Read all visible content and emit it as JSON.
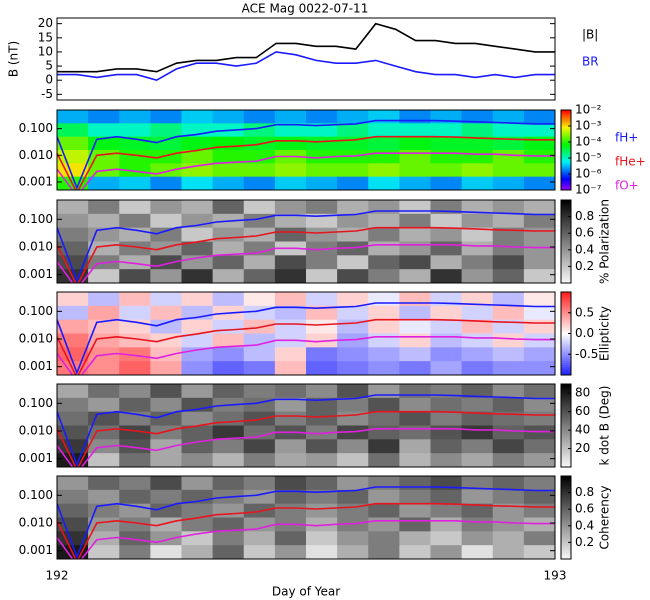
{
  "chart_data": [
    {
      "type": "line",
      "title": "ACE Mag 0022-07-11",
      "ylabel": "B (nT)",
      "xlim": [
        192,
        193
      ],
      "ylim": [
        -7,
        22
      ],
      "yticks": [
        -5,
        0,
        5,
        10,
        15,
        20
      ],
      "x": [
        192.0,
        192.04,
        192.08,
        192.12,
        192.16,
        192.2,
        192.24,
        192.28,
        192.32,
        192.36,
        192.4,
        192.44,
        192.48,
        192.52,
        192.56,
        192.6,
        192.64,
        192.68,
        192.72,
        192.76,
        192.8,
        192.84,
        192.88,
        192.92,
        192.96,
        193.0
      ],
      "series": [
        {
          "name": "|B|",
          "color": "#000000",
          "values": [
            3,
            3,
            3,
            4,
            4,
            3,
            6,
            7,
            7,
            8,
            8,
            13,
            13,
            12,
            12,
            11,
            20,
            18,
            14,
            14,
            13,
            13,
            12,
            11,
            10,
            10
          ]
        },
        {
          "name": "BR",
          "color": "#1a1aff",
          "values": [
            2,
            2,
            1,
            2,
            2,
            0,
            4,
            6,
            6,
            5,
            6,
            10,
            9,
            7,
            6,
            6,
            7,
            5,
            3,
            2,
            2,
            1,
            2,
            1,
            2,
            2
          ]
        }
      ]
    },
    {
      "type": "heatmap",
      "log_y": true,
      "xlim": [
        192,
        193
      ],
      "ylim": [
        0.0005,
        0.5
      ],
      "yticks": [
        {
          "value": 0.001,
          "label": "0.001"
        },
        {
          "value": 0.01,
          "label": "0.010"
        },
        {
          "value": 0.1,
          "label": "0.100"
        }
      ],
      "colormap": "rainbow",
      "zlog": true,
      "zlim": [
        1e-07,
        0.01
      ],
      "zticks": [
        {
          "value": 0.01,
          "label": "10⁻²"
        },
        {
          "value": 0.001,
          "label": "10⁻³"
        },
        {
          "value": 0.0001,
          "label": "10⁻⁴"
        },
        {
          "value": 1e-05,
          "label": "10⁻⁵"
        },
        {
          "value": 1e-06,
          "label": "10⁻⁶"
        },
        {
          "value": 1e-07,
          "label": "10⁻⁷"
        }
      ],
      "z": [
        [
          3e-06,
          2e-06,
          3e-06,
          2e-06,
          4e-06,
          3e-06,
          2e-06,
          3e-06,
          2e-06,
          3e-06,
          4e-06,
          2e-06,
          3e-06,
          2e-06,
          3e-06,
          2e-06
        ],
        [
          3e-05,
          1e-05,
          1e-05,
          2e-05,
          1e-05,
          1e-05,
          2e-05,
          1e-05,
          1e-05,
          2e-05,
          1e-05,
          1e-05,
          1e-05,
          2e-05,
          1e-05,
          1e-05
        ],
        [
          0.0002,
          6e-05,
          5e-05,
          4e-05,
          6e-05,
          7e-05,
          5e-05,
          6e-05,
          5e-05,
          5e-05,
          4e-05,
          6e-05,
          5e-05,
          5e-05,
          4e-05,
          6e-05
        ],
        [
          0.0005,
          0.0002,
          0.0001,
          0.0001,
          0.0002,
          0.0001,
          0.0001,
          0.0002,
          0.0001,
          0.0001,
          0.0001,
          0.0002,
          0.0001,
          0.0001,
          0.0002,
          0.0001
        ],
        [
          0.001,
          0.0002,
          0.0001,
          0.0002,
          0.0003,
          0.0002,
          0.0002,
          0.0003,
          0.0002,
          0.0002,
          0.0003,
          0.0002,
          0.0002,
          0.0003,
          0.0002,
          0.0002
        ],
        [
          0.0001,
          3e-06,
          4e-06,
          2e-06,
          5e-06,
          3e-06,
          2e-06,
          4e-06,
          3e-06,
          2e-06,
          5e-06,
          3e-06,
          2e-06,
          4e-06,
          3e-06,
          2e-06
        ]
      ],
      "x": [
        192.0,
        192.04,
        192.08,
        192.12,
        192.16,
        192.2,
        192.24,
        192.28,
        192.32,
        192.36,
        192.4,
        192.44,
        192.48,
        192.52,
        192.56,
        192.6,
        192.64,
        192.68,
        192.72,
        192.76,
        192.8,
        192.84,
        192.88,
        192.92,
        192.96,
        193.0
      ],
      "series": [
        {
          "name": "fH+",
          "color": "#1a1aff",
          "values": [
            0.05,
            0.0006,
            0.04,
            0.05,
            0.04,
            0.03,
            0.05,
            0.06,
            0.08,
            0.09,
            0.1,
            0.14,
            0.14,
            0.13,
            0.14,
            0.15,
            0.2,
            0.2,
            0.2,
            0.2,
            0.19,
            0.18,
            0.17,
            0.16,
            0.15,
            0.15
          ]
        },
        {
          "name": "fHe+",
          "color": "#e8141e",
          "values": [
            0.012,
            0.0004,
            0.01,
            0.012,
            0.01,
            0.008,
            0.012,
            0.015,
            0.02,
            0.022,
            0.025,
            0.035,
            0.035,
            0.032,
            0.035,
            0.038,
            0.05,
            0.05,
            0.05,
            0.05,
            0.048,
            0.045,
            0.042,
            0.04,
            0.038,
            0.038
          ]
        },
        {
          "name": "fO+",
          "color": "#e020e0",
          "values": [
            0.003,
            0.0003,
            0.0025,
            0.003,
            0.0025,
            0.002,
            0.003,
            0.004,
            0.005,
            0.0055,
            0.006,
            0.009,
            0.009,
            0.008,
            0.009,
            0.0095,
            0.012,
            0.012,
            0.012,
            0.012,
            0.012,
            0.011,
            0.011,
            0.01,
            0.0095,
            0.0095
          ]
        }
      ]
    },
    {
      "type": "heatmap",
      "log_y": true,
      "xlim": [
        192,
        193
      ],
      "ylim": [
        0.0005,
        0.5
      ],
      "yticks": [
        {
          "value": 0.001,
          "label": "0.001"
        },
        {
          "value": 0.01,
          "label": "0.010"
        },
        {
          "value": 0.1,
          "label": "0.100"
        }
      ],
      "colormap": "gray",
      "zlim": [
        0,
        1
      ],
      "zticks": [
        0.2,
        0.4,
        0.6,
        0.8
      ],
      "colorbar_label": "% Polarization",
      "z": [
        [
          0.3,
          0.5,
          0.2,
          0.4,
          0.3,
          0.6,
          0.2,
          0.4,
          0.5,
          0.3,
          0.4,
          0.2,
          0.5,
          0.3,
          0.4,
          0.3
        ],
        [
          0.4,
          0.3,
          0.5,
          0.2,
          0.4,
          0.3,
          0.5,
          0.3,
          0.2,
          0.4,
          0.3,
          0.5,
          0.2,
          0.4,
          0.3,
          0.5
        ],
        [
          0.5,
          0.4,
          0.3,
          0.5,
          0.2,
          0.4,
          0.3,
          0.6,
          0.4,
          0.3,
          0.5,
          0.3,
          0.4,
          0.2,
          0.5,
          0.4
        ],
        [
          0.6,
          0.3,
          0.5,
          0.4,
          0.6,
          0.3,
          0.5,
          0.2,
          0.5,
          0.6,
          0.3,
          0.4,
          0.6,
          0.3,
          0.5,
          0.4
        ],
        [
          0.7,
          0.5,
          0.3,
          0.7,
          0.4,
          0.6,
          0.3,
          0.7,
          0.5,
          0.2,
          0.6,
          0.7,
          0.3,
          0.5,
          0.7,
          0.4
        ],
        [
          0.8,
          0.2,
          0.7,
          0.4,
          0.8,
          0.3,
          0.6,
          0.8,
          0.2,
          0.7,
          0.5,
          0.3,
          0.8,
          0.4,
          0.6,
          0.2
        ]
      ]
    },
    {
      "type": "heatmap",
      "log_y": true,
      "xlim": [
        192,
        193
      ],
      "ylim": [
        0.0005,
        0.5
      ],
      "yticks": [
        {
          "value": 0.001,
          "label": "0.001"
        },
        {
          "value": 0.01,
          "label": "0.010"
        },
        {
          "value": 0.1,
          "label": "0.100"
        }
      ],
      "colormap": "bwr",
      "zlim": [
        -1,
        1
      ],
      "zticks": [
        -0.5,
        {
          "value": 0,
          "label": "0.0"
        },
        0.5
      ],
      "colorbar_label": "Ellipticity",
      "z": [
        [
          0.2,
          -0.3,
          0.3,
          -0.2,
          0.2,
          -0.3,
          0.1,
          0.3,
          -0.2,
          0.2,
          -0.1,
          0.3,
          -0.2,
          0.2,
          -0.3,
          0.1
        ],
        [
          -0.3,
          0.4,
          -0.2,
          0.3,
          -0.3,
          0.2,
          -0.2,
          -0.3,
          0.3,
          -0.2,
          0.2,
          -0.3,
          0.2,
          -0.2,
          0.3,
          -0.1
        ],
        [
          0.4,
          0.3,
          0.2,
          -0.3,
          0.2,
          -0.2,
          0.3,
          -0.2,
          0.1,
          -0.3,
          0.2,
          -0.1,
          -0.2,
          0.3,
          -0.2,
          0.2
        ],
        [
          0.6,
          0.4,
          0.3,
          0.2,
          -0.2,
          0.3,
          -0.3,
          -0.2,
          0.2,
          -0.4,
          -0.2,
          0.2,
          -0.3,
          -0.2,
          0.2,
          -0.2
        ],
        [
          0.7,
          0.5,
          0.6,
          0.3,
          -0.4,
          -0.5,
          -0.3,
          0.2,
          -0.6,
          -0.5,
          -0.4,
          -0.3,
          -0.5,
          -0.4,
          -0.3,
          -0.4
        ],
        [
          0.6,
          0.5,
          0.7,
          0.4,
          -0.5,
          -0.7,
          -0.6,
          0.3,
          -0.7,
          -0.6,
          -0.5,
          -0.6,
          -0.4,
          -0.6,
          -0.5,
          -0.5
        ]
      ]
    },
    {
      "type": "heatmap",
      "log_y": true,
      "xlim": [
        192,
        193
      ],
      "ylim": [
        0.0005,
        0.5
      ],
      "yticks": [
        {
          "value": 0.001,
          "label": "0.001"
        },
        {
          "value": 0.01,
          "label": "0.010"
        },
        {
          "value": 0.1,
          "label": "0.100"
        }
      ],
      "colormap": "gray",
      "zlim": [
        0,
        90
      ],
      "zticks": [
        20,
        40,
        60,
        80
      ],
      "colorbar_label": "k dot B (Deg)",
      "z": [
        [
          30,
          50,
          40,
          60,
          35,
          55,
          45,
          50,
          40,
          60,
          35,
          50,
          45,
          55,
          40,
          50
        ],
        [
          45,
          35,
          55,
          40,
          60,
          45,
          50,
          35,
          55,
          45,
          60,
          40,
          50,
          45,
          55,
          40
        ],
        [
          50,
          60,
          45,
          55,
          40,
          50,
          60,
          45,
          55,
          40,
          50,
          60,
          45,
          55,
          50,
          45
        ],
        [
          60,
          50,
          65,
          45,
          55,
          70,
          50,
          60,
          45,
          65,
          55,
          50,
          60,
          70,
          55,
          60
        ],
        [
          70,
          40,
          60,
          30,
          55,
          45,
          65,
          35,
          60,
          40,
          70,
          30,
          55,
          45,
          65,
          50
        ],
        [
          80,
          20,
          50,
          30,
          40,
          25,
          45,
          30,
          35,
          20,
          50,
          25,
          40,
          30,
          45,
          35
        ]
      ]
    },
    {
      "type": "heatmap",
      "log_y": true,
      "xlim": [
        192,
        193
      ],
      "ylim": [
        0.0005,
        0.5
      ],
      "yticks": [
        {
          "value": 0.001,
          "label": "0.001"
        },
        {
          "value": 0.01,
          "label": "0.010"
        },
        {
          "value": 0.1,
          "label": "0.100"
        }
      ],
      "colormap": "gray",
      "zlim": [
        0,
        1
      ],
      "zticks": [
        0.2,
        0.4,
        0.6,
        0.8
      ],
      "colorbar_label": "Coherency",
      "xticks": [
        192,
        193
      ],
      "xlabel": "Day of Year",
      "z": [
        [
          0.4,
          0.6,
          0.5,
          0.7,
          0.4,
          0.6,
          0.5,
          0.7,
          0.6,
          0.4,
          0.5,
          0.6,
          0.7,
          0.5,
          0.6,
          0.5
        ],
        [
          0.5,
          0.4,
          0.6,
          0.5,
          0.6,
          0.5,
          0.4,
          0.6,
          0.5,
          0.6,
          0.4,
          0.5,
          0.6,
          0.4,
          0.5,
          0.6
        ],
        [
          0.6,
          0.5,
          0.4,
          0.6,
          0.5,
          0.4,
          0.6,
          0.5,
          0.4,
          0.5,
          0.6,
          0.4,
          0.5,
          0.6,
          0.4,
          0.5
        ],
        [
          0.7,
          0.4,
          0.5,
          0.3,
          0.5,
          0.6,
          0.4,
          0.5,
          0.3,
          0.5,
          0.4,
          0.6,
          0.3,
          0.5,
          0.4,
          0.3
        ],
        [
          0.8,
          0.3,
          0.6,
          0.4,
          0.2,
          0.5,
          0.3,
          0.6,
          0.2,
          0.4,
          0.5,
          0.3,
          0.2,
          0.4,
          0.3,
          0.5
        ],
        [
          0.9,
          0.2,
          0.5,
          0.1,
          0.3,
          0.6,
          0.2,
          0.4,
          0.1,
          0.3,
          0.5,
          0.2,
          0.4,
          0.1,
          0.3,
          0.2
        ]
      ]
    }
  ]
}
